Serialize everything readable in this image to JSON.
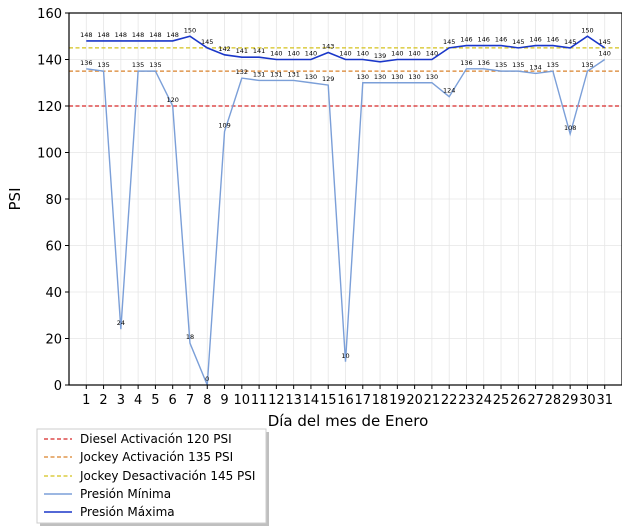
{
  "chart_data": {
    "type": "line",
    "xlabel": "Día del mes de  Enero",
    "ylabel": "PSI",
    "x": [
      1,
      2,
      3,
      4,
      5,
      6,
      7,
      8,
      9,
      10,
      11,
      12,
      13,
      14,
      15,
      16,
      17,
      18,
      19,
      20,
      21,
      22,
      23,
      24,
      25,
      26,
      27,
      28,
      29,
      30,
      31
    ],
    "xlim": [
      0,
      32
    ],
    "ylim": [
      0,
      160
    ],
    "yticks": [
      0,
      20,
      40,
      60,
      80,
      100,
      120,
      140,
      160
    ],
    "grid": true,
    "legend_position": "below-left",
    "reference_lines": [
      {
        "name": "Diesel Activación 120 PSI",
        "value": 120,
        "color": "#d62728"
      },
      {
        "name": "Jockey Activación 135 PSI",
        "value": 135,
        "color": "#d9822b"
      },
      {
        "name": "Jockey Desactivación 145 PSI",
        "value": 145,
        "color": "#d4c21c"
      }
    ],
    "series": [
      {
        "name": "Presión Mínima",
        "color": "#7b9fd8",
        "values": [
          136,
          135,
          24,
          135,
          135,
          120,
          18,
          0,
          109,
          132,
          131,
          131,
          131,
          130,
          129,
          10,
          130,
          130,
          130,
          130,
          130,
          124,
          136,
          136,
          135,
          135,
          134,
          135,
          108,
          135,
          140
        ]
      },
      {
        "name": "Presión Máxima",
        "color": "#1a37c9",
        "values": [
          148,
          148,
          148,
          148,
          148,
          148,
          150,
          145,
          142,
          141,
          141,
          140,
          140,
          140,
          143,
          140,
          140,
          139,
          140,
          140,
          140,
          145,
          146,
          146,
          146,
          145,
          146,
          146,
          145,
          150,
          145
        ]
      }
    ]
  }
}
